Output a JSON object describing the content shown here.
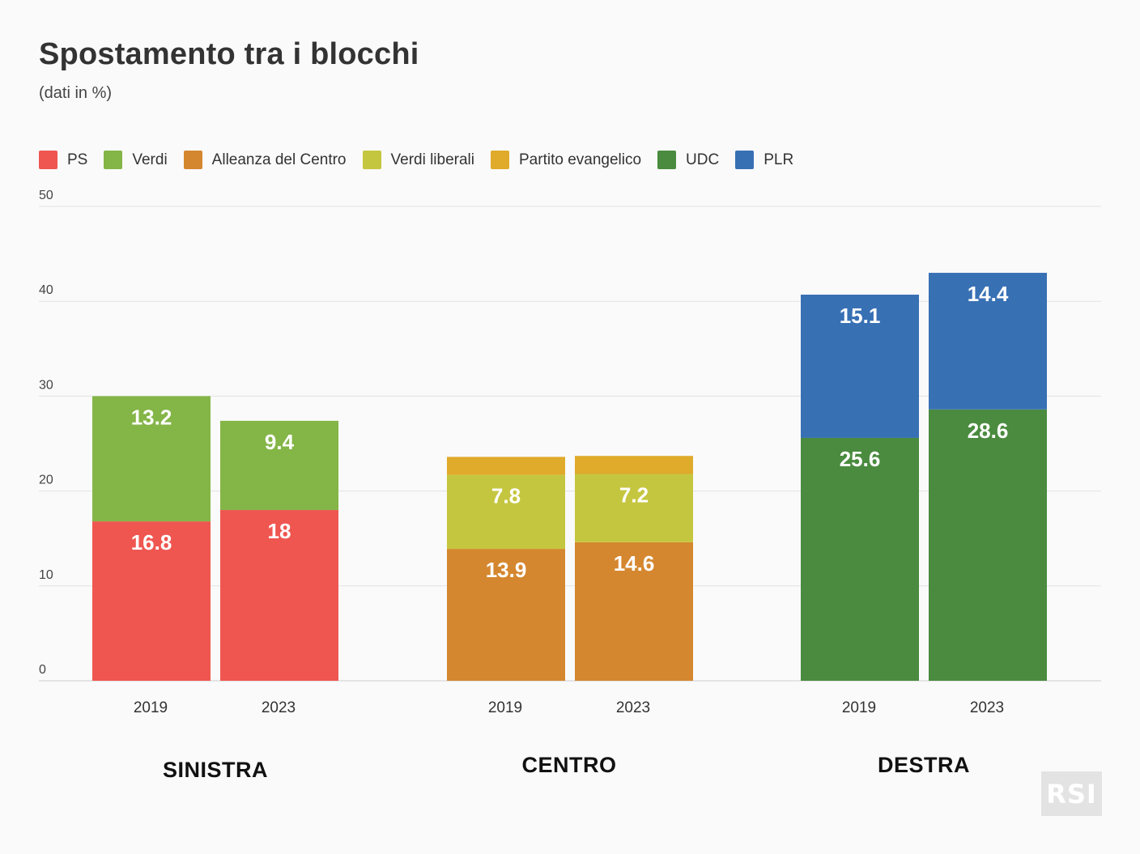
{
  "title": "Spostamento tra i blocchi",
  "subtitle": "(dati in %)",
  "logo_text": "RSI",
  "legend": [
    {
      "label": "PS",
      "color": "#ef5650"
    },
    {
      "label": "Verdi",
      "color": "#84b547"
    },
    {
      "label": "Alleanza del Centro",
      "color": "#d5872f"
    },
    {
      "label": "Verdi liberali",
      "color": "#c5c63f"
    },
    {
      "label": "Partito evangelico",
      "color": "#e0aa2b"
    },
    {
      "label": "UDC",
      "color": "#4a8b3f"
    },
    {
      "label": "PLR",
      "color": "#3870b4"
    }
  ],
  "chart_data": {
    "type": "bar",
    "stacked": true,
    "title": "Spostamento tra i blocchi",
    "subtitle": "(dati in %)",
    "ylim": [
      0,
      50
    ],
    "yticks": [
      0,
      10,
      20,
      30,
      40,
      50
    ],
    "grid": true,
    "legend_position": "top-left",
    "groups": [
      {
        "name": "SINISTRA",
        "bars": [
          {
            "x": "2019",
            "segments": [
              {
                "series": "PS",
                "value": 16.8,
                "label": "16.8"
              },
              {
                "series": "Verdi",
                "value": 13.2,
                "label": "13.2"
              }
            ]
          },
          {
            "x": "2023",
            "segments": [
              {
                "series": "PS",
                "value": 18,
                "label": "18"
              },
              {
                "series": "Verdi",
                "value": 9.4,
                "label": "9.4"
              }
            ]
          }
        ]
      },
      {
        "name": "CENTRO",
        "bars": [
          {
            "x": "2019",
            "segments": [
              {
                "series": "Alleanza del Centro",
                "value": 13.9,
                "label": "13.9"
              },
              {
                "series": "Verdi liberali",
                "value": 7.8,
                "label": "7.8"
              },
              {
                "series": "Partito evangelico",
                "value": 1.9,
                "label": ""
              }
            ]
          },
          {
            "x": "2023",
            "segments": [
              {
                "series": "Alleanza del Centro",
                "value": 14.6,
                "label": "14.6"
              },
              {
                "series": "Verdi liberali",
                "value": 7.2,
                "label": "7.2"
              },
              {
                "series": "Partito evangelico",
                "value": 1.9,
                "label": ""
              }
            ]
          }
        ]
      },
      {
        "name": "DESTRA",
        "bars": [
          {
            "x": "2019",
            "segments": [
              {
                "series": "UDC",
                "value": 25.6,
                "label": "25.6"
              },
              {
                "series": "PLR",
                "value": 15.1,
                "label": "15.1"
              }
            ]
          },
          {
            "x": "2023",
            "segments": [
              {
                "series": "UDC",
                "value": 28.6,
                "label": "28.6"
              },
              {
                "series": "PLR",
                "value": 14.4,
                "label": "14.4"
              }
            ]
          }
        ]
      }
    ]
  }
}
